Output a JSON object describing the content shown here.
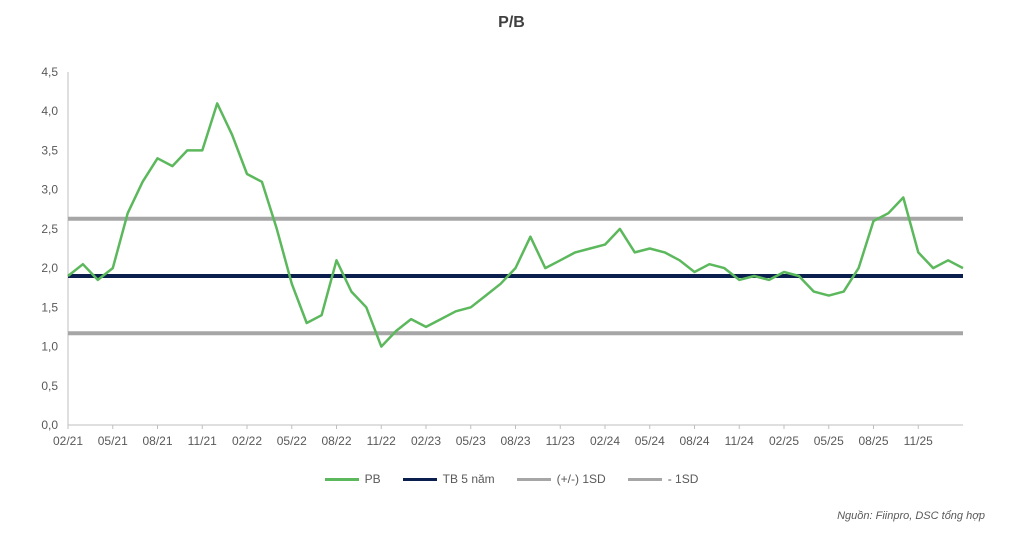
{
  "chart_data": {
    "type": "line",
    "title": "P/B",
    "xlabel": "",
    "ylabel": "",
    "ylim": [
      0,
      4.5
    ],
    "yticks": [
      "0,0",
      "0,5",
      "1,0",
      "1,5",
      "2,0",
      "2,5",
      "3,0",
      "3,5",
      "4,0",
      "4,5"
    ],
    "xticks": [
      "02/21",
      "05/21",
      "08/21",
      "11/21",
      "02/22",
      "05/22",
      "08/22",
      "11/22",
      "02/23",
      "05/23",
      "08/23",
      "11/23",
      "02/24",
      "05/24",
      "08/24",
      "11/24",
      "02/25",
      "05/25",
      "08/25",
      "11/25"
    ],
    "xrange": [
      "02/21",
      "02/26"
    ],
    "grid": false,
    "legend_position": "bottom",
    "series": [
      {
        "name": "PB",
        "color": "#5cb85c",
        "x": [
          "02/21",
          "03/21",
          "04/21",
          "05/21",
          "06/21",
          "07/21",
          "08/21",
          "09/21",
          "10/21",
          "11/21",
          "12/21",
          "01/22",
          "02/22",
          "03/22",
          "04/22",
          "05/22",
          "06/22",
          "07/22",
          "08/22",
          "09/22",
          "10/22",
          "11/22",
          "12/22",
          "01/23",
          "02/23",
          "03/23",
          "04/23",
          "05/23",
          "06/23",
          "07/23",
          "08/23",
          "09/23",
          "10/23",
          "11/23",
          "12/23",
          "01/24",
          "02/24",
          "03/24",
          "04/24",
          "05/24",
          "06/24",
          "07/24",
          "08/24",
          "09/24",
          "10/24",
          "11/24",
          "12/24",
          "01/25",
          "02/25",
          "03/25",
          "04/25",
          "05/25",
          "06/25",
          "07/25",
          "08/25",
          "09/25",
          "10/25",
          "11/25",
          "12/25",
          "01/26",
          "02/26"
        ],
        "values": [
          1.9,
          2.05,
          1.85,
          2.0,
          2.7,
          3.1,
          3.4,
          3.3,
          3.5,
          3.5,
          4.1,
          3.7,
          3.2,
          3.1,
          2.5,
          1.8,
          1.3,
          1.4,
          2.1,
          1.7,
          1.5,
          1.0,
          1.2,
          1.35,
          1.25,
          1.35,
          1.45,
          1.5,
          1.65,
          1.8,
          2.0,
          2.4,
          2.0,
          2.1,
          2.2,
          2.25,
          2.3,
          2.5,
          2.2,
          2.25,
          2.2,
          2.1,
          1.95,
          2.05,
          2.0,
          1.85,
          1.9,
          1.85,
          1.95,
          1.9,
          1.7,
          1.65,
          1.7,
          2.0,
          2.6,
          2.7,
          2.9,
          2.2,
          2.0,
          2.1,
          2.0
        ]
      },
      {
        "name": "TB 5 năm",
        "color": "#0b1f4f",
        "value": 1.9
      },
      {
        "name": "(+/-) 1SD",
        "color": "#a6a6a6",
        "value": 2.63
      },
      {
        "name": "- 1SD",
        "color": "#a6a6a6",
        "value": 1.17
      }
    ]
  },
  "source_note": "Nguồn: Fiinpro, DSC tổng hợp"
}
